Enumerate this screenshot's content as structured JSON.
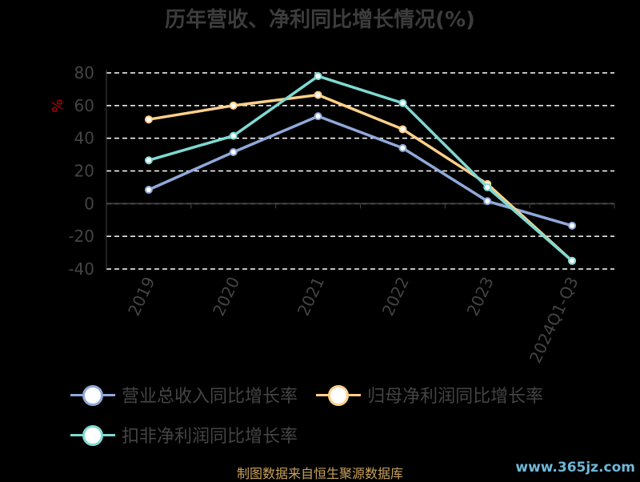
{
  "chart_data": {
    "type": "line",
    "title": "历年营收、净利同比增长情况(%)",
    "ylabel": "%",
    "categories": [
      "2019",
      "2020",
      "2021",
      "2022",
      "2023",
      "2024Q1-Q3"
    ],
    "ylim": [
      -40,
      80
    ],
    "yticks": [
      80,
      60,
      40,
      20,
      0,
      -20,
      -40
    ],
    "grid": true,
    "legend_position": "bottom",
    "series": [
      {
        "name": "营业总收入同比增长率",
        "color": "#8fa9d9",
        "values": [
          8.5,
          31.5,
          53.5,
          34.0,
          1.5,
          -13.5
        ]
      },
      {
        "name": "归母净利润同比增长率",
        "color": "#ffd08a",
        "values": [
          51.5,
          60.0,
          66.5,
          45.5,
          12.0,
          -35.0
        ]
      },
      {
        "name": "扣非净利润同比增长率",
        "color": "#7fd9d2",
        "values": [
          26.5,
          41.5,
          78.0,
          61.5,
          10.0,
          -35.0
        ]
      }
    ]
  },
  "footer": {
    "source": "制图数据来自恒生聚源数据库",
    "watermark": "www.365jz.com"
  }
}
